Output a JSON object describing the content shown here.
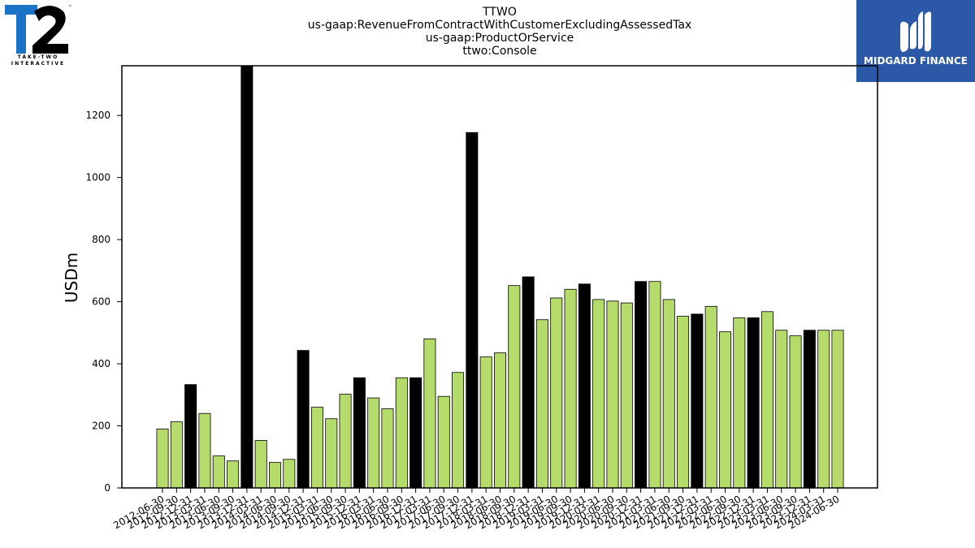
{
  "header": {
    "title_lines": [
      "TTWO",
      "us-gaap:RevenueFromContractWithCustomerExcludingAssessedTax",
      "us-gaap:ProductOrService",
      "ttwo:Console"
    ]
  },
  "logo_left": {
    "text": "T2",
    "caption": "TAKE-TWO INTERACTIVE",
    "colors": {
      "t": "#1a73c6",
      "two": "#000000"
    }
  },
  "brand": {
    "text": "MIDGARD FINANCE",
    "icon": "midgard-logo-icon",
    "background": "#2b59a8"
  },
  "chart_data": {
    "type": "bar",
    "title": "",
    "xlabel": "",
    "ylabel": "USDm",
    "ylim": [
      0,
      1360
    ],
    "yticks": [
      0,
      200,
      400,
      600,
      800,
      1000,
      1200
    ],
    "grid": false,
    "legend": "none",
    "colors": {
      "regular": "#b5dc6a",
      "highlight": "#000000",
      "edge": "#000000"
    },
    "categories": [
      "2012-06-30",
      "2012-09-30",
      "2012-12-31",
      "2013-03-31",
      "2013-06-30",
      "2013-09-30",
      "2013-12-31",
      "2014-03-31",
      "2014-06-30",
      "2014-09-30",
      "2014-12-31",
      "2015-03-31",
      "2015-06-30",
      "2015-09-30",
      "2015-12-31",
      "2016-03-31",
      "2016-06-30",
      "2016-09-30",
      "2016-12-31",
      "2017-03-31",
      "2017-06-30",
      "2017-09-30",
      "2017-12-31",
      "2018-03-31",
      "2018-06-30",
      "2018-09-30",
      "2018-12-31",
      "2019-03-31",
      "2019-06-30",
      "2019-09-30",
      "2019-12-31",
      "2020-03-31",
      "2020-06-30",
      "2020-09-30",
      "2020-12-31",
      "2021-03-31",
      "2021-06-30",
      "2021-09-30",
      "2021-12-31",
      "2022-03-31",
      "2022-06-30",
      "2022-09-30",
      "2022-12-31",
      "2023-03-31",
      "2023-06-30",
      "2023-09-30",
      "2023-12-31",
      "2024-03-31",
      "2024-06-30"
    ],
    "values": [
      190,
      213,
      333,
      240,
      103,
      87,
      1360,
      153,
      82,
      92,
      443,
      260,
      223,
      302,
      355,
      290,
      255,
      355,
      355,
      480,
      295,
      372,
      1145,
      422,
      435,
      652,
      680,
      542,
      612,
      640,
      657,
      607,
      602,
      596,
      665,
      665,
      607,
      553,
      560,
      585,
      503,
      548,
      548,
      568,
      508,
      490,
      508,
      508,
      508
    ],
    "highlight": [
      false,
      false,
      true,
      false,
      false,
      false,
      true,
      false,
      false,
      false,
      true,
      false,
      false,
      false,
      true,
      false,
      false,
      false,
      true,
      false,
      false,
      false,
      true,
      false,
      false,
      false,
      true,
      false,
      false,
      false,
      true,
      false,
      false,
      false,
      true,
      false,
      false,
      false,
      true,
      false,
      false,
      false,
      true,
      false,
      false,
      false,
      true,
      false,
      false
    ]
  }
}
